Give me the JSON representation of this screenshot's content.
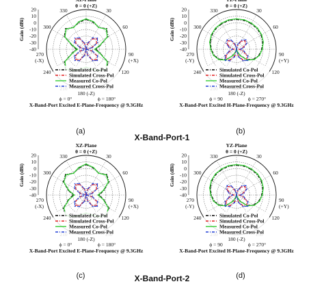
{
  "figure": {
    "section_titles": [
      "X-Band-Port-1",
      "X-Band-Port-2"
    ],
    "gain_tick_labels": [
      "20",
      "10",
      "0",
      "-10",
      "-20",
      "-30",
      "-40"
    ]
  },
  "chart_data": [
    {
      "type": "polar",
      "panel": "(a)",
      "title": "XZ-Plane",
      "top_label": "θ = 0  (+Z)",
      "bottom_label": "180 (-Z)",
      "left_label": [
        "270",
        "(-X)"
      ],
      "right_label": [
        "90",
        "(+X)"
      ],
      "corner_labels": [
        "330",
        "30",
        "300",
        "60",
        "240",
        "120",
        "210",
        "150"
      ],
      "phi_left": "ϕ = 0°",
      "phi_right": "ϕ = 180°",
      "ylabel": "Gain (dBi)",
      "caption": "X-Band-Port Excited E-Plane-Frequency @ 9.3GHz",
      "rlim": [
        -40,
        20
      ],
      "rticks": [
        20,
        10,
        0,
        -10,
        -20,
        -30,
        -40
      ],
      "legend": [
        "Simulated Co-Pol",
        "Simulated Cross-Pol",
        "Measured Co-Pol",
        "Measured Cross-Pol"
      ],
      "series": [
        {
          "name": "Simulated Co-Pol",
          "color": "#000000",
          "style": "dash-dot",
          "angles_deg": [
            0,
            15,
            30,
            45,
            60,
            75,
            90,
            105,
            120,
            135,
            150,
            165,
            180,
            195,
            210,
            225,
            240,
            255,
            270,
            285,
            300,
            315,
            330,
            345
          ],
          "gain": [
            5,
            2,
            -2,
            4,
            -2,
            -18,
            -25,
            -18,
            -2,
            4,
            -2,
            -8,
            -12,
            -8,
            -2,
            4,
            -2,
            -18,
            -25,
            -18,
            -2,
            4,
            -2,
            2
          ]
        },
        {
          "name": "Simulated Cross-Pol",
          "color": "#e31a1c",
          "style": "dash-dot",
          "angles_deg": [
            0,
            15,
            30,
            45,
            60,
            75,
            90,
            105,
            120,
            135,
            150,
            165,
            180,
            195,
            210,
            225,
            240,
            255,
            270,
            285,
            300,
            315,
            330,
            345
          ],
          "gain": [
            -40,
            -32,
            -22,
            -18,
            -22,
            -32,
            -40,
            -32,
            -22,
            -18,
            -22,
            -32,
            -40,
            -32,
            -22,
            -18,
            -22,
            -32,
            -40,
            -32,
            -22,
            -18,
            -22,
            -32
          ]
        },
        {
          "name": "Measured Co-Pol",
          "color": "#33cc33",
          "style": "solid",
          "angles_deg": [
            0,
            15,
            30,
            45,
            60,
            75,
            90,
            105,
            120,
            135,
            150,
            165,
            180,
            195,
            210,
            225,
            240,
            255,
            270,
            285,
            300,
            315,
            330,
            345
          ],
          "gain": [
            6,
            3,
            -2,
            3,
            -3,
            -19,
            -27,
            -19,
            -3,
            3,
            -3,
            -9,
            -13,
            -9,
            -3,
            3,
            -3,
            -19,
            -27,
            -19,
            -3,
            3,
            -2,
            3
          ]
        },
        {
          "name": "Measured Cross-Pol",
          "color": "#1f3fd6",
          "style": "dash-dot",
          "angles_deg": [
            0,
            15,
            30,
            45,
            60,
            75,
            90,
            105,
            120,
            135,
            150,
            165,
            180,
            195,
            210,
            225,
            240,
            255,
            270,
            285,
            300,
            315,
            330,
            345
          ],
          "gain": [
            -40,
            -30,
            -20,
            -16,
            -20,
            -30,
            -40,
            -30,
            -20,
            -16,
            -20,
            -30,
            -40,
            -30,
            -20,
            -16,
            -20,
            -30,
            -40,
            -30,
            -20,
            -16,
            -20,
            -30
          ]
        }
      ]
    },
    {
      "type": "polar",
      "panel": "(b)",
      "title": "YZ-Plane",
      "top_label": "θ = 0  (+Z)",
      "bottom_label": "180 (-Z)",
      "left_label": [
        "270",
        "(-Y)"
      ],
      "right_label": [
        "90",
        "(+Y)"
      ],
      "corner_labels": [
        "330",
        "30",
        "300",
        "60",
        "240",
        "120",
        "210",
        "150"
      ],
      "phi_left": "ϕ = 90",
      "phi_right": "ϕ = 270°",
      "ylabel": "Gain (dBi)",
      "caption": "X-Band-Port Excited H-Plane-Frequency @ 9.3GHz",
      "rlim": [
        -40,
        20
      ],
      "rticks": [
        20,
        10,
        0,
        -10,
        -20,
        -30,
        -40
      ],
      "legend": [
        "Simulated Co-Pol",
        "Simulated Cross-Pol",
        "Measured Co-Pol",
        "Measured Cross-Pol"
      ],
      "series": [
        {
          "name": "Simulated Co-Pol",
          "color": "#000000",
          "style": "dash-dot",
          "angles_deg": [
            0,
            15,
            30,
            45,
            60,
            75,
            90,
            105,
            120,
            135,
            150,
            165,
            180,
            195,
            210,
            225,
            240,
            255,
            270,
            285,
            300,
            315,
            330,
            345
          ],
          "gain": [
            5,
            5,
            4.5,
            4,
            3,
            1,
            -2,
            -5,
            -10,
            -18,
            -30,
            -38,
            -40,
            -38,
            -30,
            -18,
            -10,
            -5,
            -2,
            1,
            3,
            4,
            4.5,
            5
          ]
        },
        {
          "name": "Simulated Cross-Pol",
          "color": "#e31a1c",
          "style": "dash-dot",
          "angles_deg": [
            0,
            15,
            30,
            45,
            60,
            75,
            90,
            105,
            120,
            135,
            150,
            165,
            180,
            195,
            210,
            225,
            240,
            255,
            270,
            285,
            300,
            315,
            330,
            345
          ],
          "gain": [
            -40,
            -34,
            -26,
            -22,
            -24,
            -30,
            -36,
            -30,
            -22,
            -18,
            -22,
            -30,
            -40,
            -30,
            -22,
            -18,
            -22,
            -30,
            -36,
            -30,
            -24,
            -22,
            -26,
            -34
          ]
        },
        {
          "name": "Measured Co-Pol",
          "color": "#33cc33",
          "style": "solid",
          "angles_deg": [
            0,
            15,
            30,
            45,
            60,
            75,
            90,
            105,
            120,
            135,
            150,
            165,
            180,
            195,
            210,
            225,
            240,
            255,
            270,
            285,
            300,
            315,
            330,
            345
          ],
          "gain": [
            6,
            6,
            5.5,
            5,
            4,
            2,
            -1,
            -4,
            -9,
            -17,
            -29,
            -37,
            -40,
            -37,
            -29,
            -17,
            -9,
            -4,
            -1,
            2,
            4,
            5,
            5.5,
            6
          ]
        },
        {
          "name": "Measured Cross-Pol",
          "color": "#1f3fd6",
          "style": "dash-dot",
          "angles_deg": [
            0,
            15,
            30,
            45,
            60,
            75,
            90,
            105,
            120,
            135,
            150,
            165,
            180,
            195,
            210,
            225,
            240,
            255,
            270,
            285,
            300,
            315,
            330,
            345
          ],
          "gain": [
            -40,
            -32,
            -24,
            -20,
            -22,
            -28,
            -34,
            -28,
            -20,
            -16,
            -20,
            -28,
            -40,
            -28,
            -20,
            -16,
            -20,
            -28,
            -34,
            -28,
            -22,
            -20,
            -24,
            -32
          ]
        }
      ]
    },
    {
      "type": "polar",
      "panel": "(c)",
      "title": "XZ-Plane",
      "top_label": "θ = 0  (+Z)",
      "bottom_label": "180 (-Z)",
      "left_label": [
        "270",
        "(-X)"
      ],
      "right_label": [
        "90",
        "(+X)"
      ],
      "corner_labels": [
        "330",
        "30",
        "300",
        "60",
        "240",
        "120",
        "210",
        "150"
      ],
      "phi_left": "ϕ = 0°",
      "phi_right": "ϕ = 180°",
      "ylabel": "Gain (dBi)",
      "caption": "X-Band-Port Excited E-Plane-Frequency @ 9.3GHz",
      "rlim": [
        -40,
        20
      ],
      "rticks": [
        20,
        10,
        0,
        -10,
        -20,
        -30,
        -40
      ],
      "legend": [
        "Simulated Co-Pol",
        "Simulated Cross-Pol",
        "Measured Co-Pol",
        "Measured Cross-Pol"
      ],
      "series": [
        {
          "name": "Simulated Co-Pol",
          "color": "#000000",
          "style": "dash-dot",
          "angles_deg": [
            0,
            15,
            30,
            45,
            60,
            75,
            90,
            105,
            120,
            135,
            150,
            165,
            180,
            195,
            210,
            225,
            240,
            255,
            270,
            285,
            300,
            315,
            330,
            345
          ],
          "gain": [
            6,
            2,
            -2,
            4,
            0,
            -12,
            -20,
            -12,
            0,
            4,
            -2,
            -8,
            -12,
            -8,
            -2,
            4,
            0,
            -12,
            -20,
            -12,
            0,
            4,
            -2,
            2
          ]
        },
        {
          "name": "Simulated Cross-Pol",
          "color": "#e31a1c",
          "style": "dash-dot",
          "angles_deg": [
            0,
            15,
            30,
            45,
            60,
            75,
            90,
            105,
            120,
            135,
            150,
            165,
            180,
            195,
            210,
            225,
            240,
            255,
            270,
            285,
            300,
            315,
            330,
            345
          ],
          "gain": [
            -40,
            -32,
            -22,
            -18,
            -22,
            -32,
            -40,
            -32,
            -22,
            -18,
            -22,
            -32,
            -40,
            -32,
            -22,
            -18,
            -22,
            -32,
            -40,
            -32,
            -22,
            -18,
            -22,
            -32
          ]
        },
        {
          "name": "Measured Co-Pol",
          "color": "#33cc33",
          "style": "solid",
          "angles_deg": [
            0,
            15,
            30,
            45,
            60,
            75,
            90,
            105,
            120,
            135,
            150,
            165,
            180,
            195,
            210,
            225,
            240,
            255,
            270,
            285,
            300,
            315,
            330,
            345
          ],
          "gain": [
            7,
            3,
            -2,
            3,
            -1,
            -13,
            -22,
            -13,
            -1,
            3,
            -2,
            -9,
            -13,
            -9,
            -2,
            3,
            -1,
            -13,
            -22,
            -13,
            -1,
            3,
            -2,
            3
          ]
        },
        {
          "name": "Measured Cross-Pol",
          "color": "#1f3fd6",
          "style": "dash-dot",
          "angles_deg": [
            0,
            15,
            30,
            45,
            60,
            75,
            90,
            105,
            120,
            135,
            150,
            165,
            180,
            195,
            210,
            225,
            240,
            255,
            270,
            285,
            300,
            315,
            330,
            345
          ],
          "gain": [
            -40,
            -30,
            -20,
            -16,
            -20,
            -30,
            -40,
            -30,
            -20,
            -16,
            -20,
            -30,
            -40,
            -30,
            -20,
            -16,
            -20,
            -30,
            -40,
            -30,
            -20,
            -16,
            -20,
            -30
          ]
        }
      ]
    },
    {
      "type": "polar",
      "panel": "(d)",
      "title": "YZ-Plane",
      "top_label": "θ = 0  (+Z)",
      "bottom_label": "180 (-Z)",
      "left_label": [
        "270",
        "(-Y)"
      ],
      "right_label": [
        "90",
        "(+Y)"
      ],
      "corner_labels": [
        "330",
        "30",
        "300",
        "60",
        "240",
        "120",
        "210",
        "150"
      ],
      "phi_left": "ϕ = 90",
      "phi_right": "ϕ = 270°",
      "ylabel": "Gain (dBi)",
      "caption": "X-Band-Port Excited H-Plane-Frequency @ 9.3GHz",
      "rlim": [
        -40,
        20
      ],
      "rticks": [
        20,
        10,
        0,
        -10,
        -20,
        -30,
        -40
      ],
      "legend": [
        "Simulated Co-Pol",
        "Simulated Cross-Pol",
        "Measured Co-Pol",
        "Measured Cross-Pol"
      ],
      "series": [
        {
          "name": "Simulated Co-Pol",
          "color": "#000000",
          "style": "dash-dot",
          "angles_deg": [
            0,
            15,
            30,
            45,
            60,
            75,
            90,
            105,
            120,
            135,
            150,
            165,
            180,
            195,
            210,
            225,
            240,
            255,
            270,
            285,
            300,
            315,
            330,
            345
          ],
          "gain": [
            5,
            5,
            4.5,
            4,
            3,
            1,
            -2,
            -5,
            -10,
            -18,
            -30,
            -38,
            -40,
            -38,
            -30,
            -18,
            -10,
            -5,
            -2,
            1,
            3,
            4,
            4.5,
            5
          ]
        },
        {
          "name": "Simulated Cross-Pol",
          "color": "#e31a1c",
          "style": "dash-dot",
          "angles_deg": [
            0,
            15,
            30,
            45,
            60,
            75,
            90,
            105,
            120,
            135,
            150,
            165,
            180,
            195,
            210,
            225,
            240,
            255,
            270,
            285,
            300,
            315,
            330,
            345
          ],
          "gain": [
            -40,
            -34,
            -26,
            -22,
            -24,
            -30,
            -36,
            -30,
            -22,
            -18,
            -22,
            -30,
            -40,
            -30,
            -22,
            -18,
            -22,
            -30,
            -36,
            -30,
            -24,
            -22,
            -26,
            -34
          ]
        },
        {
          "name": "Measured Co-Pol",
          "color": "#33cc33",
          "style": "solid",
          "angles_deg": [
            0,
            15,
            30,
            45,
            60,
            75,
            90,
            105,
            120,
            135,
            150,
            165,
            180,
            195,
            210,
            225,
            240,
            255,
            270,
            285,
            300,
            315,
            330,
            345
          ],
          "gain": [
            6,
            6,
            5.5,
            5,
            4,
            2,
            -1,
            -4,
            -9,
            -17,
            -29,
            -37,
            -40,
            -37,
            -29,
            -17,
            -9,
            -4,
            -1,
            2,
            4,
            5,
            5.5,
            6
          ]
        },
        {
          "name": "Measured Cross-Pol",
          "color": "#1f3fd6",
          "style": "dash-dot",
          "angles_deg": [
            0,
            15,
            30,
            45,
            60,
            75,
            90,
            105,
            120,
            135,
            150,
            165,
            180,
            195,
            210,
            225,
            240,
            255,
            270,
            285,
            300,
            315,
            330,
            345
          ],
          "gain": [
            -40,
            -32,
            -24,
            -20,
            -22,
            -28,
            -34,
            -28,
            -20,
            -16,
            -20,
            -28,
            -40,
            -28,
            -20,
            -16,
            -20,
            -28,
            -34,
            -28,
            -22,
            -20,
            -24,
            -32
          ]
        }
      ]
    }
  ]
}
